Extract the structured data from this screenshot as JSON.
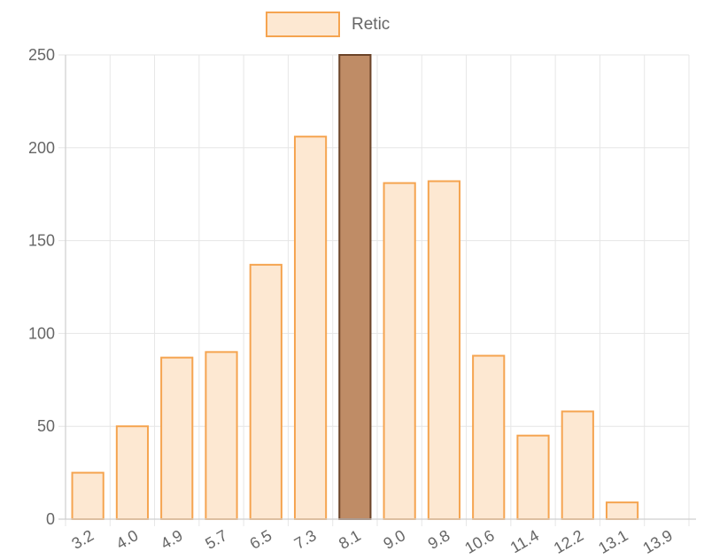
{
  "chart_data": {
    "type": "bar",
    "categories": [
      "3.2",
      "4.0",
      "4.9",
      "5.7",
      "6.5",
      "7.3",
      "8.1",
      "9.0",
      "9.8",
      "10.6",
      "11.4",
      "12.2",
      "13.1",
      "13.9"
    ],
    "series": [
      {
        "name": "Retic",
        "values": [
          25,
          50,
          87,
          90,
          137,
          206,
          250,
          181,
          182,
          88,
          45,
          58,
          9,
          0
        ],
        "fill": "#fde8d2",
        "stroke": "#f5a450"
      }
    ],
    "highlight": {
      "category": "8.1",
      "fill": "#bf8c66",
      "stroke": "#6b4328"
    },
    "ylim": [
      0,
      250
    ],
    "yticks": [
      0,
      50,
      100,
      150,
      200,
      250
    ],
    "grid": true,
    "legend": "top-center",
    "title": "",
    "xlabel": "",
    "ylabel": ""
  }
}
